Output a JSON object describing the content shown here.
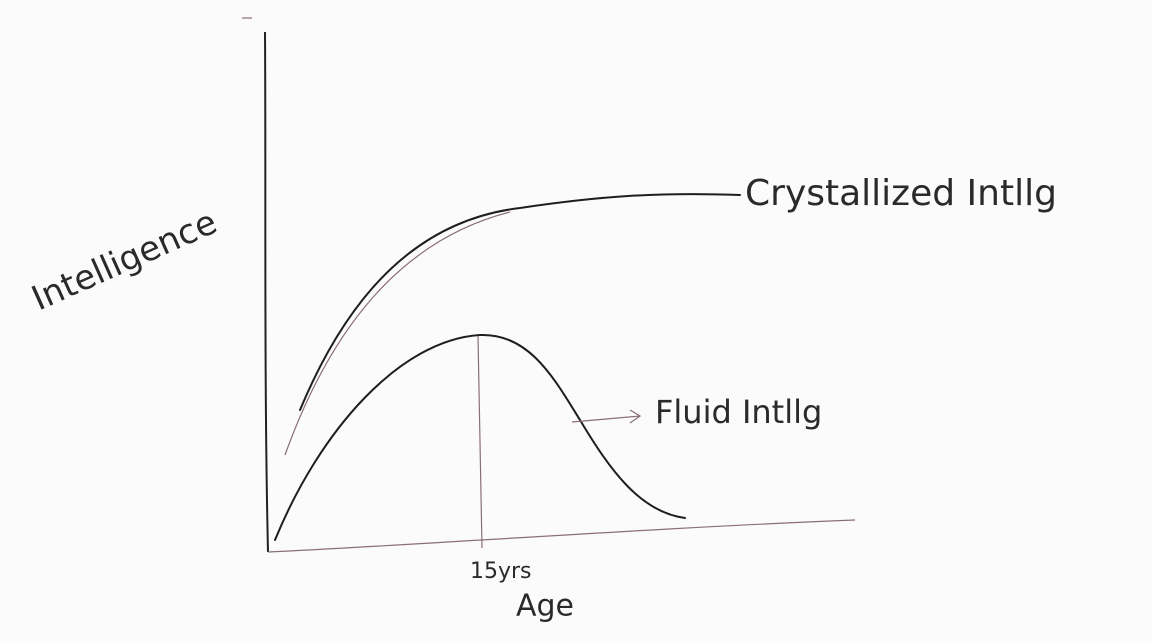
{
  "diagram": {
    "y_axis_label": "Intelligence",
    "x_axis_label": "Age",
    "peak_label": "15yrs",
    "curves": [
      {
        "label": "Crystallized Intllg"
      },
      {
        "label": "Fluid Intllg"
      }
    ]
  }
}
